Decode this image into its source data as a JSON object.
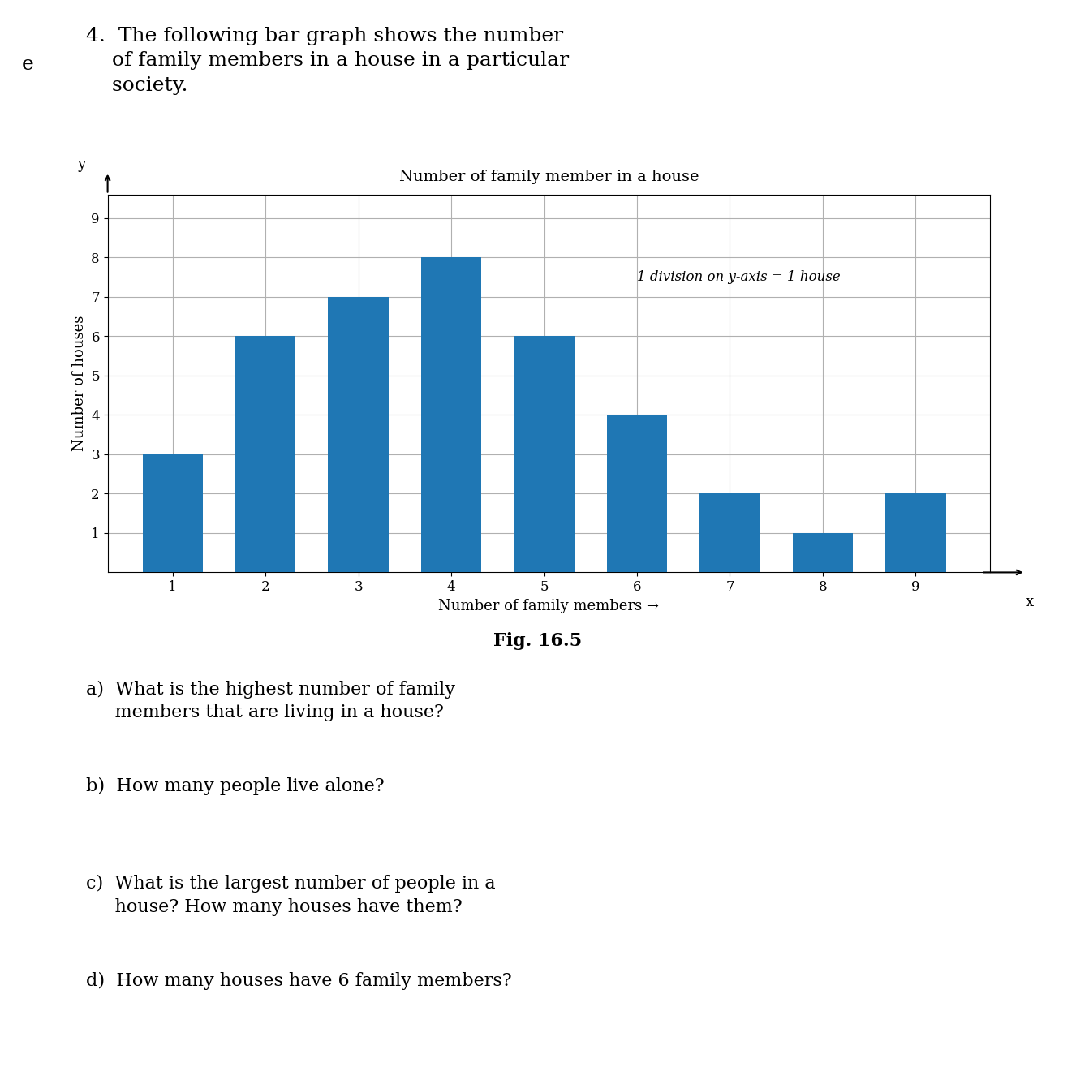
{
  "chart_data": {
    "type": "bar",
    "title": "Number of family member in a house",
    "xlabel": "Number of family members →",
    "ylabel": "Number of houses",
    "x": [
      1,
      2,
      3,
      4,
      5,
      6,
      7,
      8,
      9
    ],
    "values": [
      3,
      6,
      7,
      8,
      6,
      4,
      2,
      1,
      2
    ],
    "xlim": [
      0.3,
      9.8
    ],
    "xticks": [
      1,
      2,
      3,
      4,
      5,
      6,
      7,
      8,
      9
    ],
    "ylim": [
      0,
      9.6
    ],
    "yticks": [
      1,
      2,
      3,
      4,
      5,
      6,
      7,
      8,
      9
    ],
    "grid": true,
    "annotations": [
      "4.  The following bar graph shows the number\n    of family members in a house in a particular\n    society.",
      "e",
      "1 division on y-axis = 1 house",
      "y",
      "x",
      "Fig. 16.5",
      "a)  What is the highest number of family\n     members that are living in a house?",
      "b)  How many people live alone?",
      "c)  What is the largest number of people in a\n     house? How many houses have them?",
      "d)  How many houses have 6 family members?"
    ]
  }
}
